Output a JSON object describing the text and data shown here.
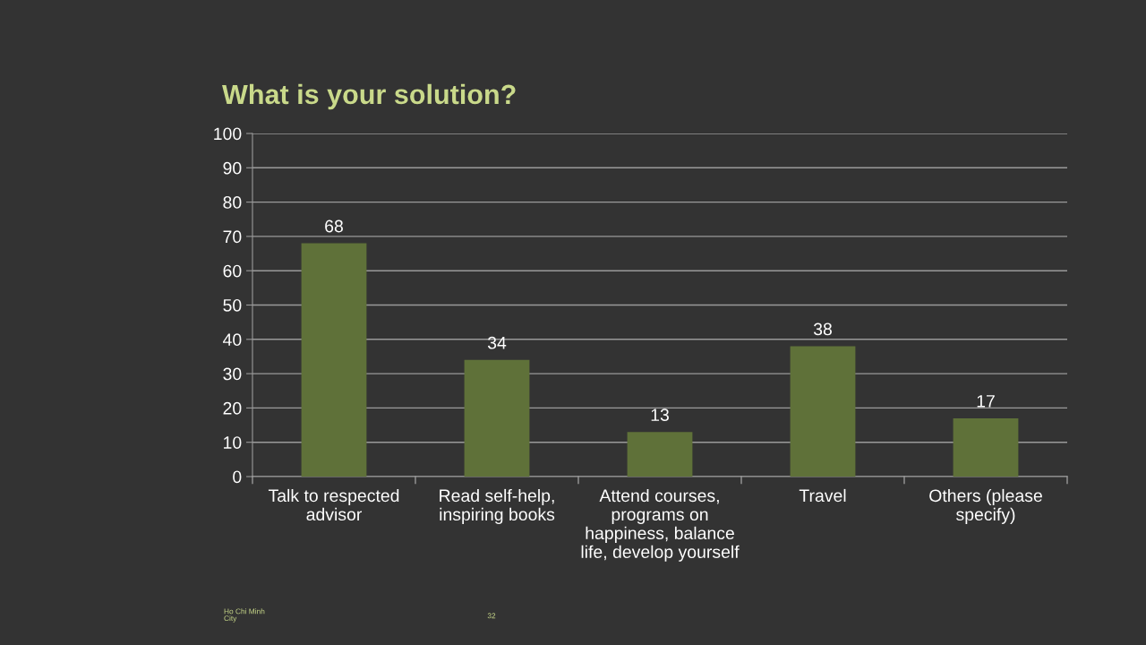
{
  "chart_data": {
    "type": "bar",
    "title": "What is your solution?",
    "categories": [
      "Talk to respected\nadvisor",
      "Read self-help,\ninspiring books",
      "Attend courses,\nprograms on\nhappiness, balance\nlife, develop yourself",
      "Travel",
      "Others (please\nspecify)"
    ],
    "values": [
      68,
      34,
      13,
      38,
      17
    ],
    "color": "#5f7139",
    "ylim": [
      0,
      100
    ],
    "yticks": [
      0,
      10,
      20,
      30,
      40,
      50,
      60,
      70,
      80,
      90,
      100
    ],
    "grid": "y",
    "data_labels": true,
    "annotations": [
      "Ho Chi Minh\nCity",
      "32"
    ]
  }
}
